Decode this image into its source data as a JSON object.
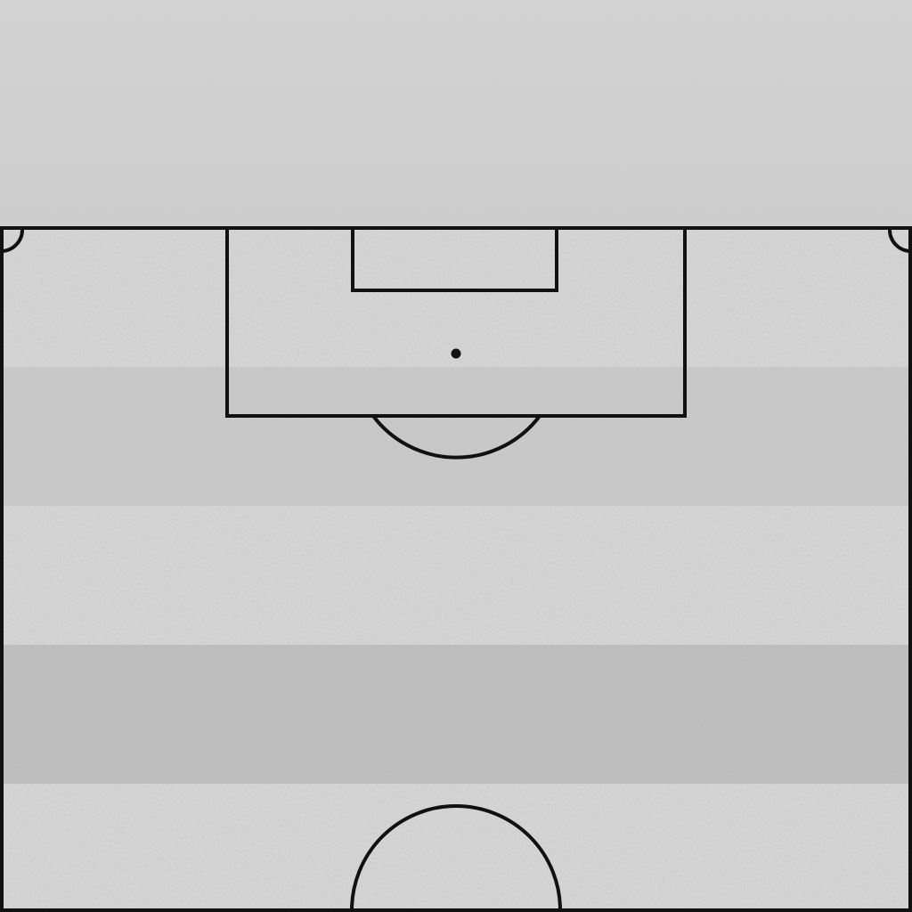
{
  "pitch": {
    "view": "half-pitch-top-down",
    "surface": "grass",
    "style": "grayscale",
    "colors": {
      "line": "#111111",
      "turf_light": "#d4d4d4",
      "turf_mid": "#c8c8c8",
      "turf_dark": "#bdbdbd",
      "sky": "#d2d2d2"
    },
    "markings": [
      "touchline-left",
      "touchline-right",
      "goal-line",
      "halfway-line",
      "penalty-area",
      "goal-area",
      "penalty-spot",
      "penalty-arc",
      "center-circle",
      "corner-arc-left",
      "corner-arc-right"
    ]
  }
}
